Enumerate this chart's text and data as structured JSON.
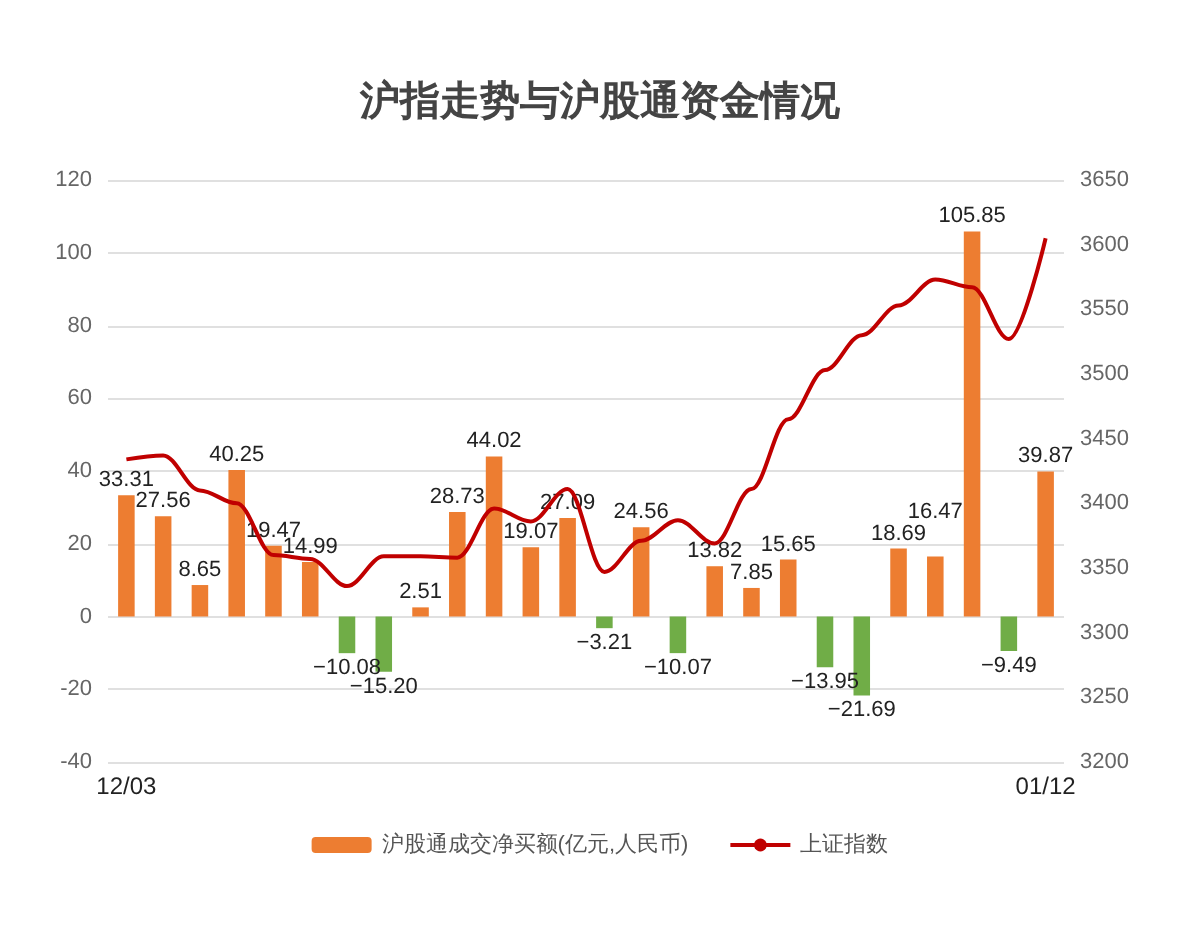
{
  "chart_data": {
    "type": "bar",
    "title": "沪指走势与沪股通资金情况",
    "categories": [
      "12/03",
      null,
      null,
      null,
      null,
      null,
      null,
      null,
      null,
      null,
      null,
      null,
      null,
      null,
      null,
      null,
      null,
      null,
      null,
      null,
      null,
      null,
      null,
      null,
      null,
      "01/12"
    ],
    "series": [
      {
        "name": "沪股通成交净买额(亿元,人民币)",
        "type": "bar",
        "color": "#ed7d31",
        "values": [
          33.31,
          27.56,
          8.65,
          40.25,
          19.47,
          14.99,
          -10.08,
          -15.2,
          2.51,
          28.73,
          44.02,
          19.07,
          27.09,
          -3.21,
          24.56,
          -10.07,
          13.82,
          7.85,
          15.65,
          -13.95,
          -21.69,
          18.69,
          16.47,
          105.85,
          -9.49,
          39.87
        ],
        "colors": [
          "#ed7d31",
          "#ed7d31",
          "#ed7d31",
          "#ed7d31",
          "#ed7d31",
          "#ed7d31",
          "#70ad47",
          "#70ad47",
          "#ed7d31",
          "#ed7d31",
          "#ed7d31",
          "#ed7d31",
          "#ed7d31",
          "#70ad47",
          "#ed7d31",
          "#70ad47",
          "#ed7d31",
          "#ed7d31",
          "#ed7d31",
          "#70ad47",
          "#70ad47",
          "#ed7d31",
          "#ed7d31",
          "#ed7d31",
          "#70ad47",
          "#ed7d31"
        ],
        "value_labels": [
          "33.31",
          "27.56",
          "8.65",
          "40.25",
          "19.47",
          "14.99",
          "−10.08",
          "−15.20",
          "2.51",
          "28.73",
          "44.02",
          "19.07",
          "27.09",
          "−3.21",
          "24.56",
          "−10.07",
          "13.82",
          "7.85",
          "15.65",
          "−13.95",
          "−21.69",
          "18.69",
          "16.47",
          "105.85",
          "−9.49",
          "39.87"
        ]
      },
      {
        "name": "上证指数",
        "type": "line",
        "axis": "y2",
        "color": "#c00000",
        "values": [
          3434,
          3437,
          3410,
          3400,
          3360,
          3357,
          3336,
          3359,
          3359,
          3358,
          3396,
          3386,
          3411,
          3347,
          3371,
          3387,
          3369,
          3411,
          3465,
          3503,
          3530,
          3553,
          3573,
          3567,
          3527,
          3605
        ]
      }
    ],
    "ylim": [
      -40,
      120
    ],
    "yticks": [
      -40,
      -20,
      0,
      20,
      40,
      60,
      80,
      100,
      120
    ],
    "y2lim": [
      3200,
      3650
    ],
    "y2ticks": [
      3200,
      3250,
      3300,
      3350,
      3400,
      3450,
      3500,
      3550,
      3600,
      3650
    ],
    "grid": "y",
    "legend": "bottom",
    "marker": "none"
  }
}
